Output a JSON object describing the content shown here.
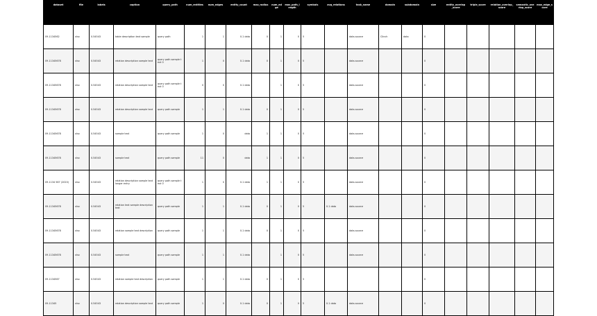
{
  "columns": [
    "dataset",
    "file",
    "labels",
    "caption",
    "query_path",
    "num_entities",
    "num_edges",
    "entity_count",
    "max_radius",
    "num_edge",
    "max_path_length",
    "symbols",
    "avg_relations",
    "task_name",
    "domain",
    "subdomain",
    "size",
    "entity_overlap_score",
    "triple_score",
    "relation_overlap_score",
    "semantic_overlap_score",
    "max_edge_score"
  ],
  "rows": [
    [
      "09-1134562",
      "xlsx",
      "0.54543",
      "table description text sample",
      "query path",
      "1",
      "1",
      "0.1 data",
      "0",
      "1",
      "0",
      "5",
      "",
      "data-source",
      "Clinch",
      "data",
      "0",
      "",
      "",
      "",
      "",
      ""
    ],
    [
      "09-11345678",
      "xlsx",
      "0.54543",
      "relation description sample text",
      "query path sample text 0",
      "1",
      "0",
      "0.1 data",
      "0",
      "1",
      "0",
      "5",
      "",
      "data-source",
      "",
      "",
      "0",
      "",
      "",
      "",
      "",
      ""
    ],
    [
      "09-11345678",
      "xlsx",
      "0.54543",
      "relation description sample text",
      "query path sample text 0",
      "0",
      "0",
      "0.1 data",
      "",
      "1",
      "0",
      "5",
      "",
      "data-source",
      "",
      "",
      "0",
      "",
      "",
      "",
      "",
      ""
    ],
    [
      "09-11345678",
      "xlsx",
      "0.54543",
      "relation description sample text",
      "query path sample",
      "1",
      "1",
      "0.1 data",
      "0",
      "1",
      "0",
      "5",
      "",
      "data-source",
      "",
      "",
      "0",
      "",
      "",
      "",
      "",
      ""
    ],
    [
      "09-11345678",
      "xlsx",
      "0.54543",
      "sample text",
      "query path sample",
      "1",
      "0",
      "data",
      "1",
      "1",
      "0",
      "5",
      "",
      "data-source",
      "",
      "",
      "0",
      "",
      "",
      "",
      "",
      ""
    ],
    [
      "09-11345678",
      "xlsx",
      "0.54543",
      "sample text",
      "query path sample",
      "11",
      "0",
      "data",
      "1",
      "1",
      "0",
      "5",
      "",
      "data-source",
      "",
      "",
      "0",
      "",
      "",
      "",
      "",
      ""
    ],
    [
      "09-1134 567 (2020)",
      "xlsx",
      "0.54543",
      "relation description sample text longer entry",
      "query path sample text 0",
      "1",
      "0",
      "0.1 data",
      "1",
      "1",
      "0",
      "5",
      "",
      "data-source",
      "",
      "",
      "0",
      "",
      "",
      "",
      "",
      ""
    ],
    [
      "09-11345678",
      "xlsx",
      "0.54543",
      "relation text sample description text",
      "query path sample",
      "1",
      "1",
      "0.1 data",
      "0",
      "1",
      "0",
      "5",
      "0.1 data",
      "data-source",
      "",
      "",
      "0",
      "",
      "",
      "",
      "",
      ""
    ],
    [
      "09-11345678",
      "xlsx",
      "0.54543",
      "relation sample text description",
      "query path sample",
      "1",
      "1",
      "0.1 data",
      "0",
      "1",
      "0",
      "5",
      "",
      "data-source",
      "",
      "",
      "0",
      "",
      "",
      "",
      "",
      ""
    ],
    [
      "09-11345678",
      "xlsx",
      "0.54543",
      "sample text",
      "query path sample",
      "1",
      "1",
      "0.1 data",
      "",
      "1",
      "0",
      "5",
      "",
      "data-source",
      "",
      "",
      "0",
      "",
      "",
      "",
      "",
      ""
    ],
    [
      "09-1134567",
      "xlsx",
      "0.54543",
      "relation sample text description",
      "query path sample",
      "1",
      "1",
      "0.1 data",
      "0",
      "1",
      "0",
      "5",
      "",
      "",
      "",
      "",
      "0",
      "",
      "",
      "",
      "",
      ""
    ],
    [
      "09-11345",
      "xlsx",
      "0.54543",
      "relation description sample text",
      "query path sample",
      "1",
      "0",
      "0.1 data",
      "0",
      "1",
      "0",
      "5",
      "0.1 data",
      "data-source",
      "",
      "",
      "0",
      "",
      "",
      "",
      "",
      ""
    ]
  ]
}
